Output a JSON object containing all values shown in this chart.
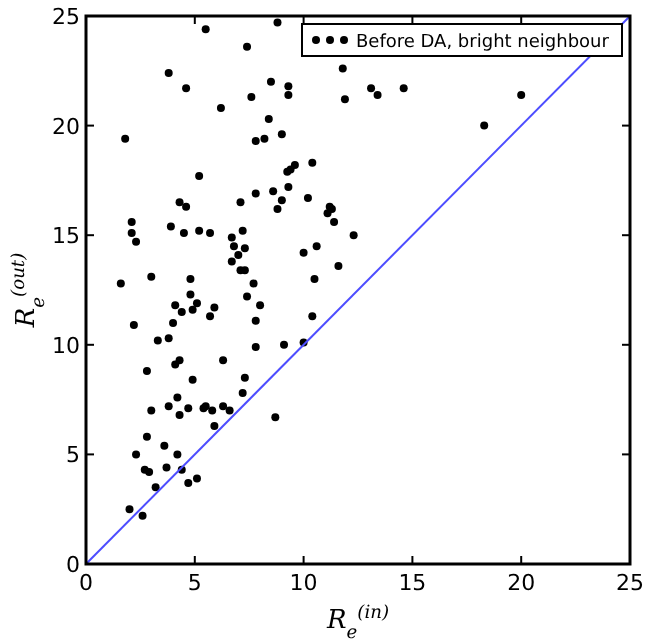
{
  "chart_data": {
    "type": "scatter",
    "xlabel": "R$_{e}$$^{(in)}$",
    "ylabel": "R$_{e}$$^{(out)}$",
    "xlim": [
      0,
      25
    ],
    "ylim": [
      0,
      25
    ],
    "xticks": [
      0,
      5,
      10,
      15,
      20,
      25
    ],
    "yticks": [
      0,
      5,
      10,
      15,
      20,
      25
    ],
    "grid": false,
    "legend": "top right",
    "marker": "circle",
    "series": [
      {
        "name": "Before DA, bright neighbour",
        "color": "#000000",
        "x": [
          5.5,
          7.4,
          3.8,
          4.6,
          8.5,
          9.3,
          9.3,
          7.6,
          11.9,
          6.2,
          8.4,
          1.8,
          7.8,
          8.2,
          9.0,
          10.4,
          9.6,
          9.4,
          9.25,
          5.2,
          9.3,
          8.6,
          7.8,
          10.2,
          9.0,
          7.1,
          4.3,
          4.6,
          8.8,
          11.2,
          11.1,
          11.4,
          2.1,
          3.9,
          5.2,
          4.5,
          5.7,
          2.1,
          7.2,
          12.3,
          2.3,
          6.7,
          6.8,
          7.3,
          10.6,
          10.0,
          7.0,
          6.7,
          7.1,
          7.3,
          11.6,
          10.5,
          1.6,
          3.0,
          4.8,
          7.7,
          4.8,
          7.4,
          8.0,
          4.1,
          4.4,
          5.1,
          4.9,
          5.9,
          5.7,
          7.8,
          10.4,
          4.0,
          2.2,
          3.8,
          3.3,
          9.1,
          10.0,
          7.8,
          4.3,
          4.1,
          6.3,
          2.8,
          7.3,
          4.9,
          7.2,
          4.2,
          3.8,
          3.0,
          4.3,
          4.7,
          5.4,
          5.5,
          5.8,
          6.3,
          6.6,
          5.9,
          8.7,
          2.8,
          3.6,
          2.3,
          4.2,
          3.7,
          2.7,
          2.9,
          4.4,
          3.2,
          4.7,
          5.1,
          2.0,
          2.6,
          11.8,
          13.1,
          13.4,
          14.6,
          20.0,
          18.3,
          11.3,
          8.8
        ],
        "values": [
          24.4,
          23.6,
          22.4,
          21.7,
          22.0,
          21.8,
          21.4,
          21.3,
          21.2,
          20.8,
          20.3,
          19.4,
          19.3,
          19.4,
          19.6,
          18.3,
          18.2,
          18.0,
          17.9,
          17.7,
          17.2,
          17.0,
          16.9,
          16.7,
          16.6,
          16.5,
          16.5,
          16.3,
          16.2,
          16.3,
          16.0,
          15.6,
          15.6,
          15.4,
          15.2,
          15.1,
          15.1,
          15.1,
          15.2,
          15.0,
          14.7,
          14.9,
          14.5,
          14.4,
          14.5,
          14.2,
          14.1,
          13.8,
          13.4,
          13.4,
          13.6,
          13.0,
          12.8,
          13.1,
          13.0,
          12.8,
          12.3,
          12.2,
          11.8,
          11.8,
          11.5,
          11.9,
          11.6,
          11.7,
          11.3,
          11.1,
          11.3,
          11.0,
          10.9,
          10.3,
          10.2,
          10.0,
          10.1,
          9.9,
          9.3,
          9.1,
          9.3,
          8.8,
          8.5,
          8.4,
          7.8,
          7.6,
          7.2,
          7.0,
          6.8,
          7.1,
          7.1,
          7.2,
          7.0,
          7.2,
          7.0,
          6.3,
          6.7,
          5.8,
          5.4,
          5.0,
          5.0,
          4.4,
          4.3,
          4.2,
          4.3,
          3.5,
          3.7,
          3.9,
          2.5,
          2.2,
          22.6,
          21.7,
          21.4,
          21.7,
          21.4,
          20.0,
          16.2,
          24.7
        ]
      },
      {
        "color": "#4d4dff",
        "type": "line",
        "marker": "none",
        "x": [
          0,
          25
        ],
        "values": [
          0,
          25
        ]
      }
    ]
  }
}
